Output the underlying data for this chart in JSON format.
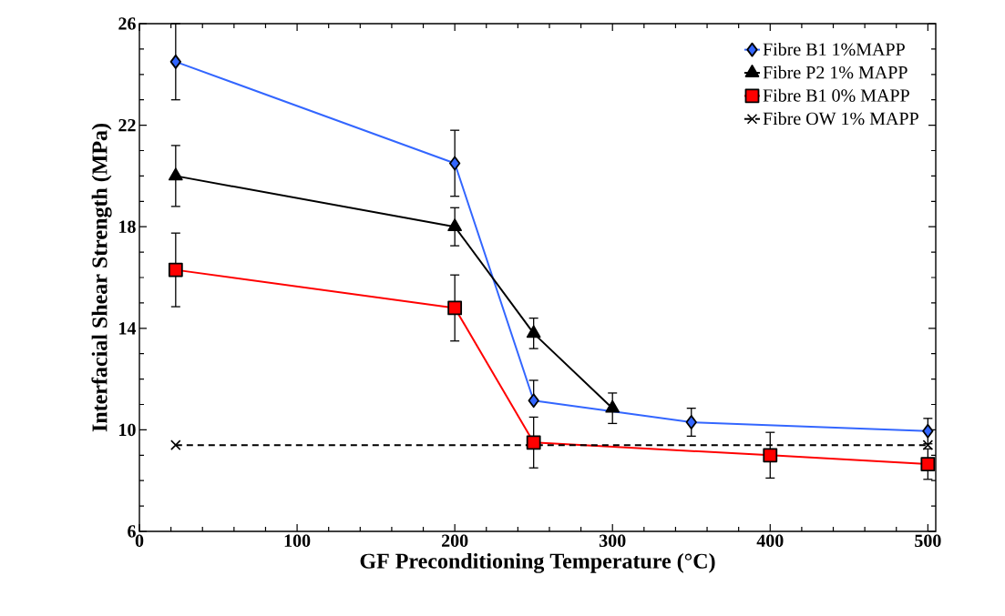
{
  "chart_data": {
    "type": "line",
    "xlabel": "GF Preconditioning Temperature (°C)",
    "ylabel": "Interfacial Shear Strength (MPa)",
    "xlim": [
      0,
      505
    ],
    "ylim": [
      6,
      26
    ],
    "xticks": [
      0,
      100,
      200,
      300,
      400,
      500
    ],
    "yticks": [
      6,
      10,
      14,
      18,
      22,
      26
    ],
    "legend": "top right",
    "grid": false,
    "series": [
      {
        "name": "Fibre B1 1%MAPP",
        "color": "#3366ff",
        "marker": "diamond",
        "line_style": "solid",
        "x": [
          23,
          200,
          250,
          300,
          350,
          500
        ],
        "values": [
          24.5,
          20.5,
          11.15,
          null,
          10.3,
          9.95
        ],
        "errors": [
          1.5,
          1.3,
          [
            11.15,
            11.95
          ],
          null,
          0.55,
          0.5
        ]
      },
      {
        "name": "Fibre P2 1% MAPP",
        "color": "#000000",
        "marker": "triangle",
        "line_style": "solid",
        "x": [
          23,
          200,
          250,
          300
        ],
        "values": [
          20.0,
          18.0,
          13.8,
          10.85
        ],
        "errors": [
          1.2,
          0.75,
          0.6,
          0.6
        ]
      },
      {
        "name": "Fibre B1 0% MAPP",
        "color": "#ff0000",
        "marker": "square",
        "line_style": "solid",
        "x": [
          23,
          200,
          250,
          400,
          500
        ],
        "values": [
          16.3,
          14.8,
          9.5,
          9.0,
          8.65
        ],
        "errors": [
          1.45,
          1.3,
          1.0,
          0.9,
          0.6
        ]
      },
      {
        "name": "Fibre OW 1% MAPP",
        "color": "#000000",
        "marker": "cross",
        "line_style": "dashed",
        "x": [
          23,
          500
        ],
        "values": [
          9.4,
          9.4
        ]
      }
    ]
  }
}
